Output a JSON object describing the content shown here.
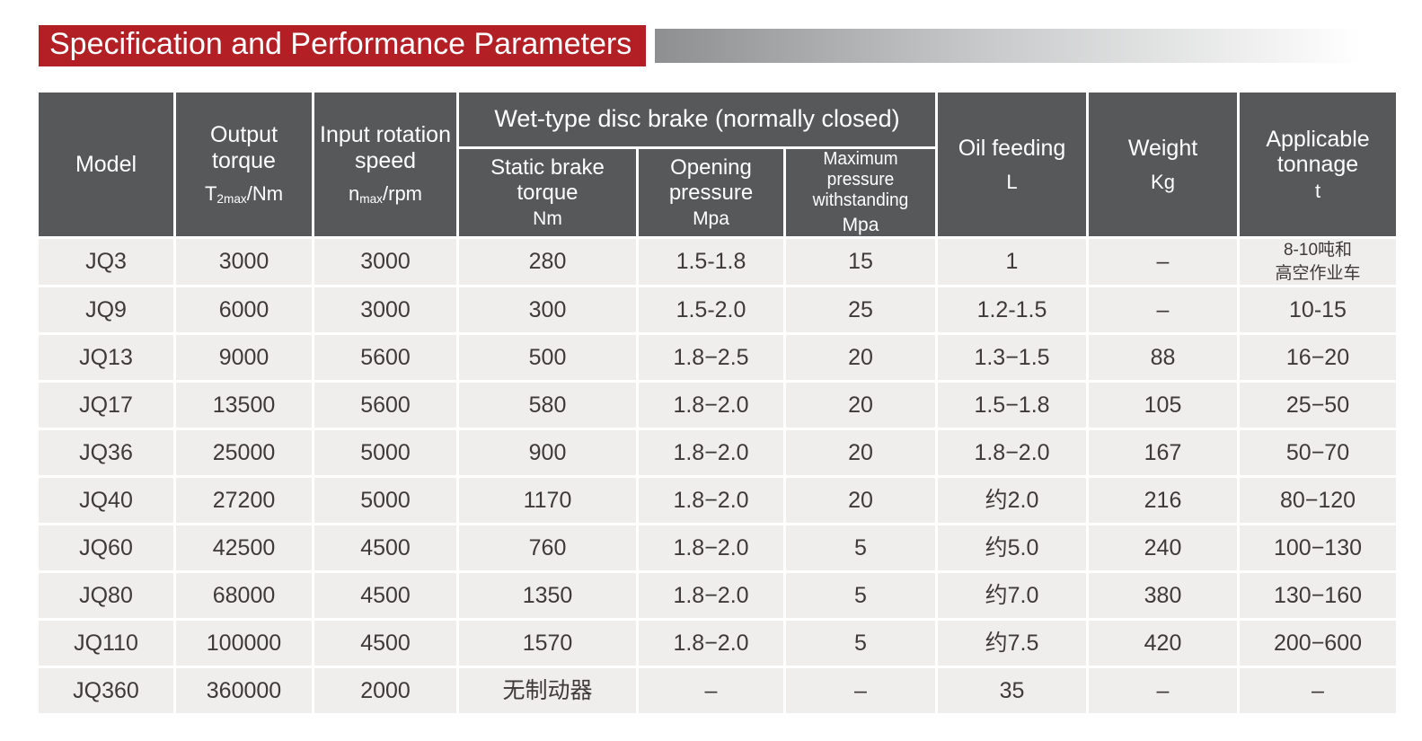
{
  "page": {
    "title": "Specification and Performance Parameters"
  },
  "colors": {
    "title_bg": "#b22025",
    "header_bg": "#57585a",
    "row_bg": "#efeeed",
    "body_text": "#3e3a39"
  },
  "table": {
    "group_header": "Wet-type disc brake (normally closed)",
    "headers": {
      "model": {
        "label": "Model"
      },
      "output_torque": {
        "label": "Output torque",
        "unit_pre": "T",
        "unit_sub": "2max",
        "unit_post": "/Nm"
      },
      "input_speed": {
        "label": "Input rotation speed",
        "unit_pre": "n",
        "unit_sub": "max",
        "unit_post": "/rpm"
      },
      "static_brake": {
        "label": "Static brake torque",
        "unit": "Nm"
      },
      "opening_pressure": {
        "label": "Opening pressure",
        "unit": "Mpa"
      },
      "max_pressure": {
        "label": "Maximum pressure withstanding",
        "unit": "Mpa"
      },
      "oil_feeding": {
        "label": "Oil feeding",
        "unit": "L"
      },
      "weight": {
        "label": "Weight",
        "unit": "Kg"
      },
      "tonnage": {
        "label": "Applicable tonnage",
        "unit": "t"
      }
    },
    "rows": [
      [
        "JQ3",
        "3000",
        "3000",
        "280",
        "1.5-1.8",
        "15",
        "1",
        "–",
        "8-10吨和\n高空作业车"
      ],
      [
        "JQ9",
        "6000",
        "3000",
        "300",
        "1.5-2.0",
        "25",
        "1.2-1.5",
        "–",
        "10-15"
      ],
      [
        "JQ13",
        "9000",
        "5600",
        "500",
        "1.8−2.5",
        "20",
        "1.3−1.5",
        "88",
        "16−20"
      ],
      [
        "JQ17",
        "13500",
        "5600",
        "580",
        "1.8−2.0",
        "20",
        "1.5−1.8",
        "105",
        "25−50"
      ],
      [
        "JQ36",
        "25000",
        "5000",
        "900",
        "1.8−2.0",
        "20",
        "1.8−2.0",
        "167",
        "50−70"
      ],
      [
        "JQ40",
        "27200",
        "5000",
        "1170",
        "1.8−2.0",
        "20",
        "约2.0",
        "216",
        "80−120"
      ],
      [
        "JQ60",
        "42500",
        "4500",
        "760",
        "1.8−2.0",
        "5",
        "约5.0",
        "240",
        "100−130"
      ],
      [
        "JQ80",
        "68000",
        "4500",
        "1350",
        "1.8−2.0",
        "5",
        "约7.0",
        "380",
        "130−160"
      ],
      [
        "JQ110",
        "100000",
        "4500",
        "1570",
        "1.8−2.0",
        "5",
        "约7.5",
        "420",
        "200−600"
      ],
      [
        "JQ360",
        "360000",
        "2000",
        "无制动器",
        "–",
        "–",
        "35",
        "–",
        "–"
      ]
    ]
  }
}
